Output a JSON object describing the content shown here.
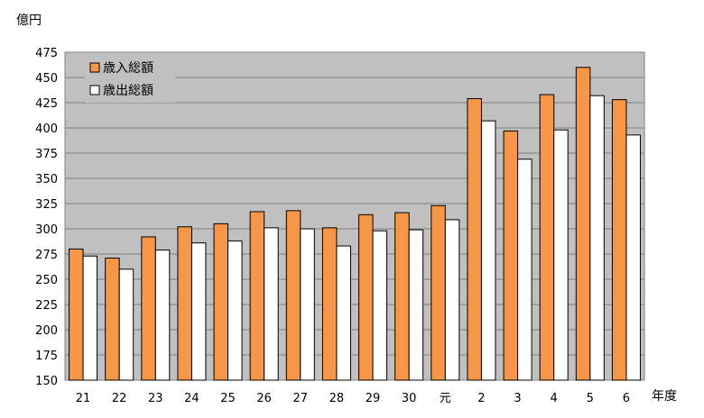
{
  "chart_data": {
    "type": "bar",
    "ylabel": "億円",
    "xlabel": "年度",
    "ylim": [
      150,
      475
    ],
    "ytick_step": 25,
    "grid": true,
    "legend_position": "top-left",
    "categories": [
      "21",
      "22",
      "23",
      "24",
      "25",
      "26",
      "27",
      "28",
      "29",
      "30",
      "元",
      "2",
      "3",
      "4",
      "5",
      "6"
    ],
    "series": [
      {
        "name": "歳入総額",
        "color": "#f79646",
        "values": [
          280,
          271,
          292,
          302,
          305,
          317,
          318,
          301,
          314,
          316,
          323,
          429,
          397,
          433,
          460,
          428
        ]
      },
      {
        "name": "歳出総額",
        "color": "#ffffff",
        "values": [
          273,
          260,
          279,
          286,
          288,
          301,
          300,
          283,
          298,
          299,
          309,
          407,
          369,
          398,
          432,
          393
        ]
      }
    ],
    "colors": {
      "plot_background": "#c0c0c0",
      "gridline": "#808080",
      "bar_outline": "#000000"
    }
  }
}
